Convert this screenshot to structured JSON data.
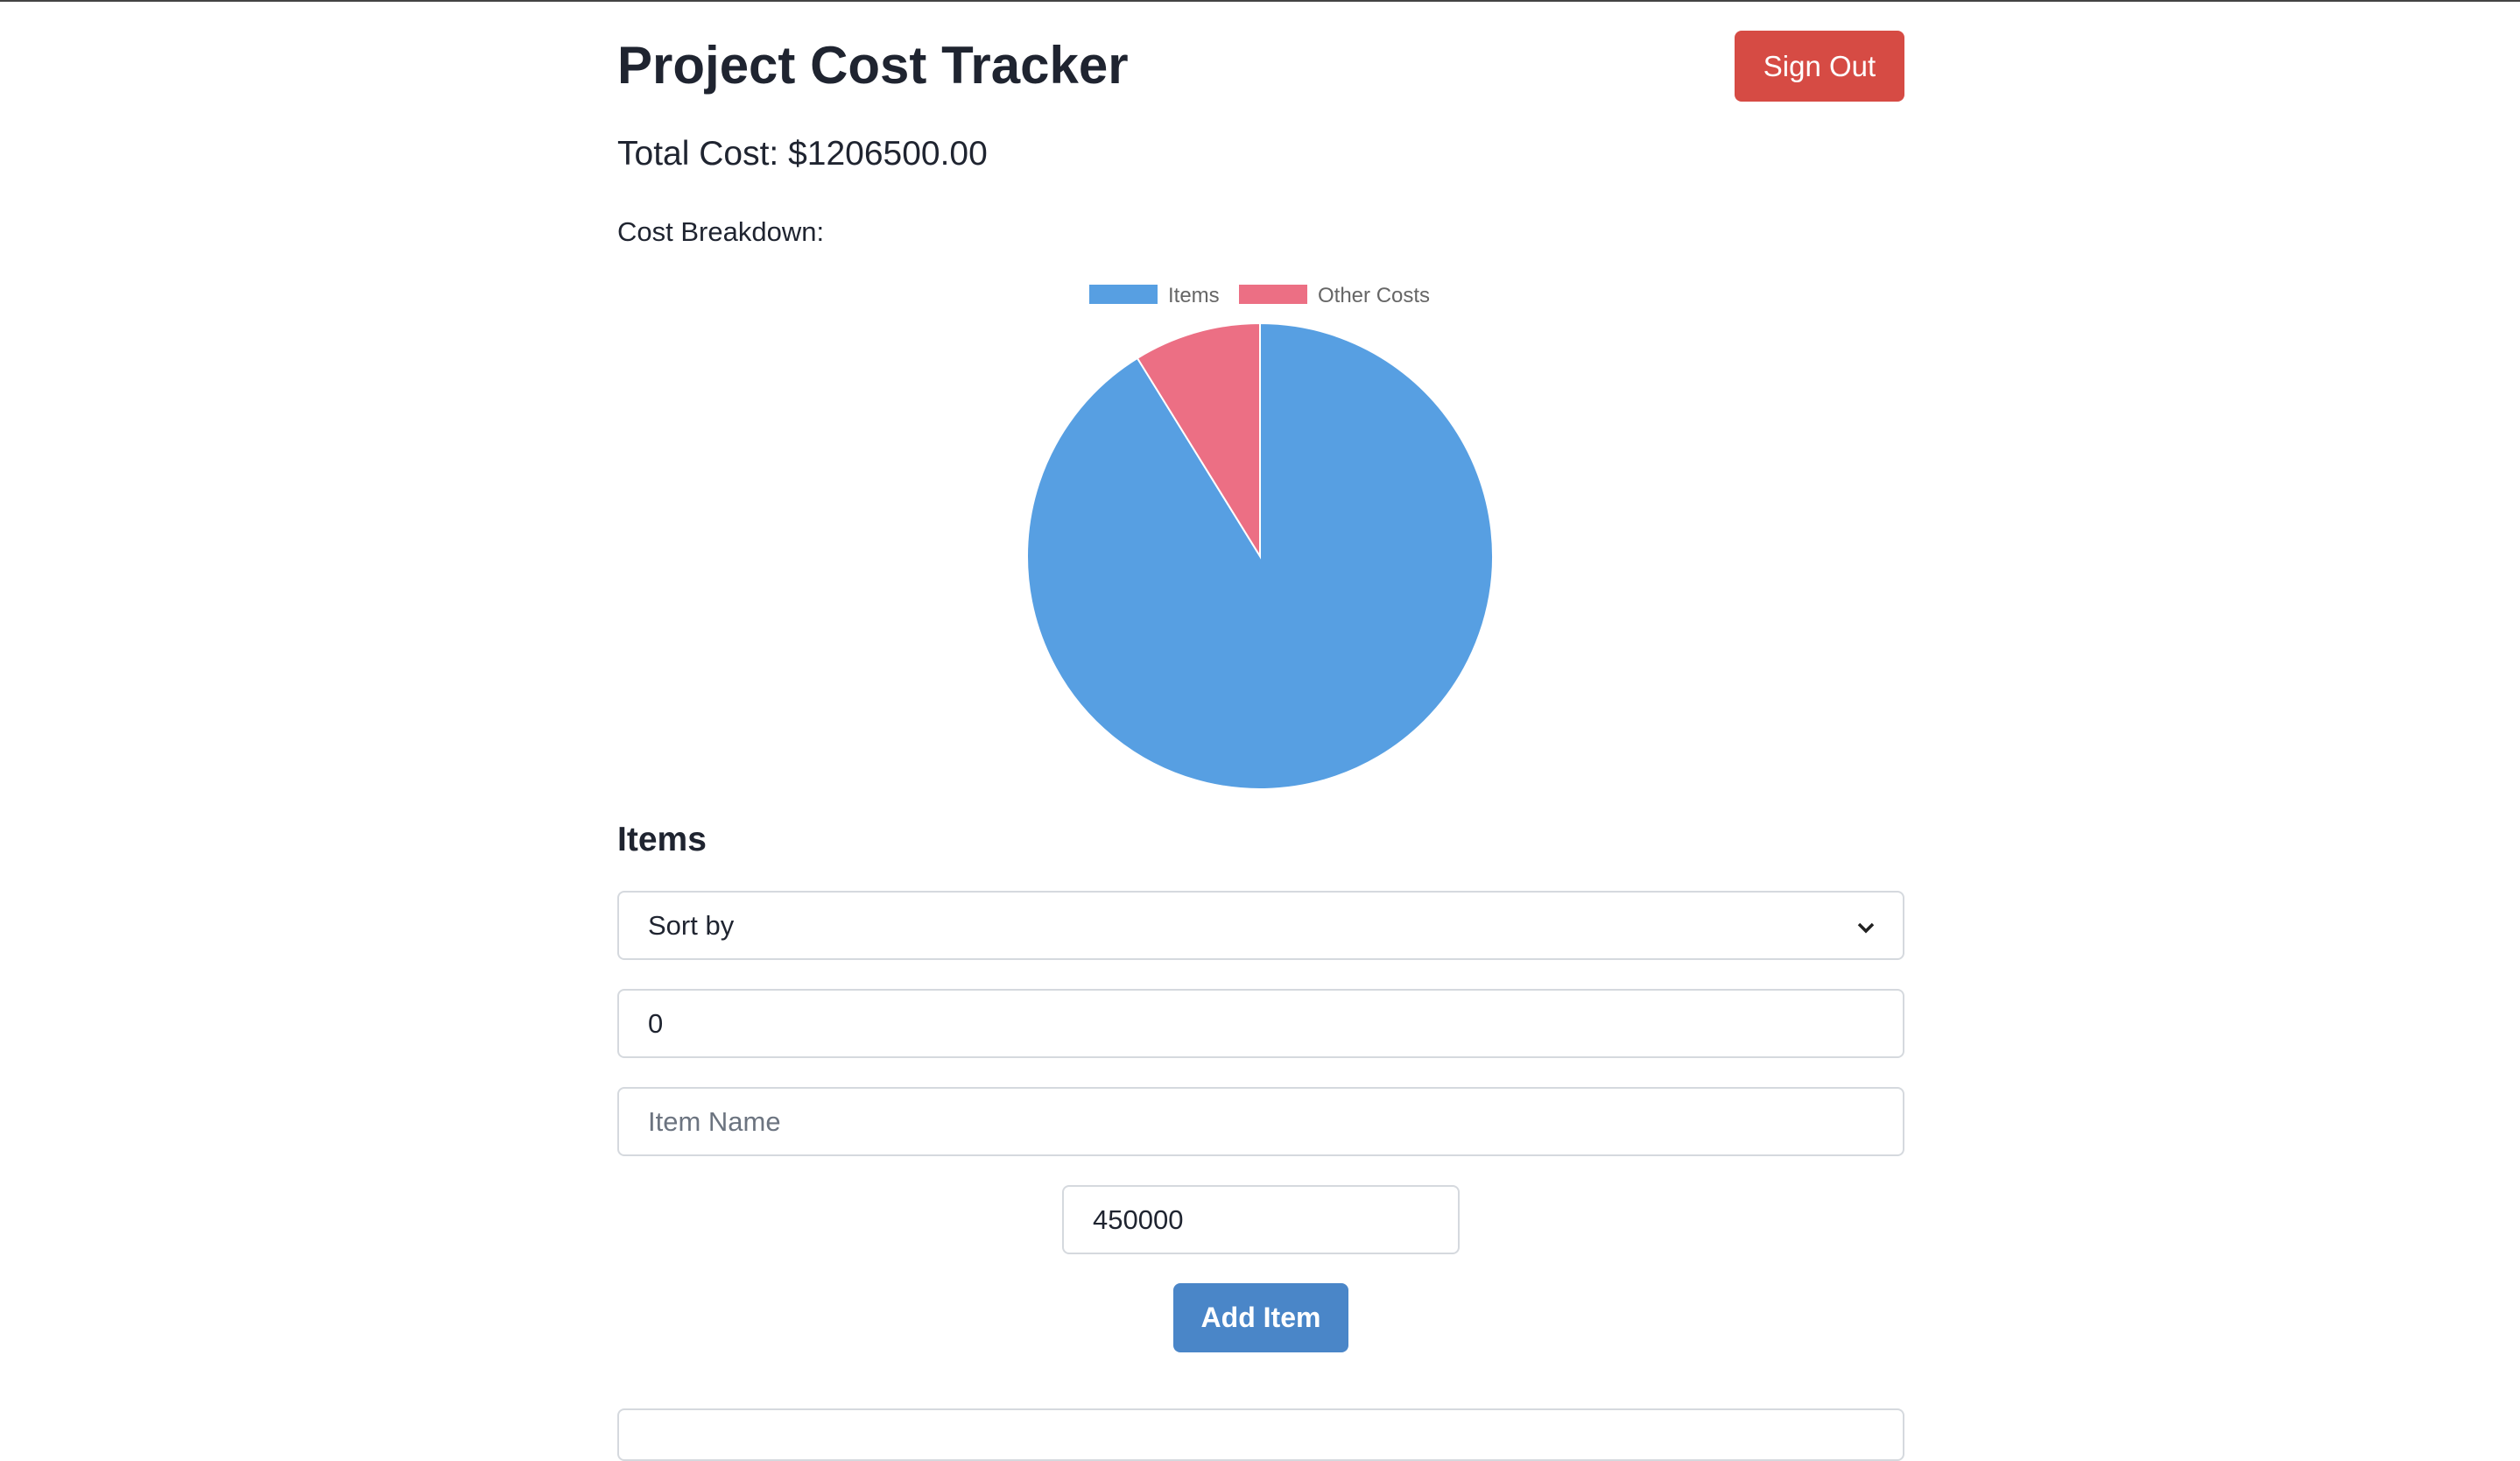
{
  "header": {
    "title": "Project Cost Tracker",
    "sign_out": "Sign Out"
  },
  "total_cost": "Total Cost: $1206500.00",
  "breakdown_label": "Cost Breakdown:",
  "chart_data": {
    "type": "pie",
    "categories": [
      "Items",
      "Other Costs"
    ],
    "values": [
      1100000,
      106500
    ],
    "colors": [
      "#579fe2",
      "#ec6f84"
    ],
    "legend": "top"
  },
  "items_section": {
    "heading": "Items",
    "sort_select": "Sort by",
    "quantity_input": "0",
    "name_input_placeholder": "Item Name",
    "cost_input": "450000",
    "add_button": "Add Item"
  }
}
